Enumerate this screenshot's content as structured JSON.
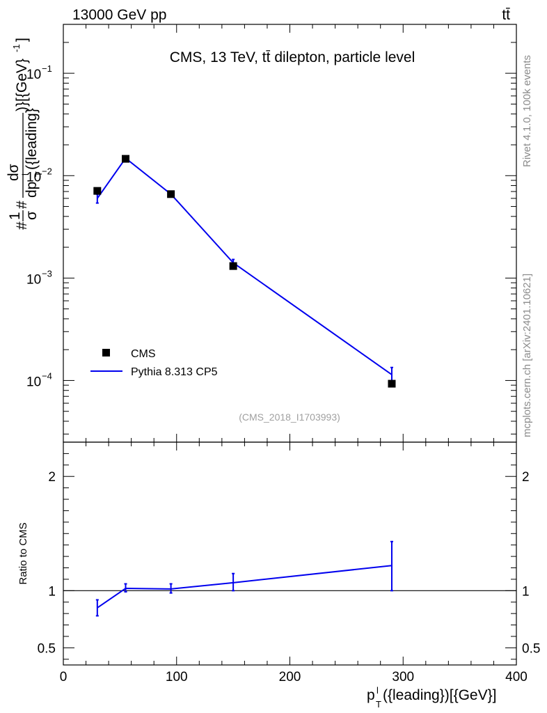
{
  "header": {
    "energy": "13000 GeV pp",
    "process": "tt̄"
  },
  "side_labels": {
    "rivet": "Rivet 4.1.0,  100k events",
    "mcplots": "mcplots.cern.ch [arXiv:2401.10621]"
  },
  "chart_data": [
    {
      "type": "scatter",
      "title": "CMS, 13 TeV, tt̄ dilepton, particle level",
      "watermark": "(CMS_2018_I1703993)",
      "xlabel": "p_T^l({leading})[{GeV}]",
      "ylabel_parts": {
        "prefix": "#",
        "one": "1",
        "sigma": "σ",
        "hash": "#",
        "numerator": "dσ",
        "denominator": "dp",
        "sup_l": "l",
        "sub_T": "T",
        "denominator_tail": "({leading}",
        "tail": ")}[{GeV}",
        "exp": "-1",
        "close": "]"
      },
      "yscale": "log",
      "xlim": [
        0,
        400
      ],
      "ylim": [
        2.5e-05,
        0.3
      ],
      "yticks": [
        {
          "value": 0.1,
          "base": "10",
          "exp": "−1"
        },
        {
          "value": 0.01,
          "base": "10",
          "exp": "−2"
        },
        {
          "value": 0.001,
          "base": "10",
          "exp": "−3"
        },
        {
          "value": 0.0001,
          "base": "10",
          "exp": "−4"
        }
      ],
      "legend": {
        "position": "bottom-left",
        "entries": [
          "CMS",
          "Pythia 8.313 CP5"
        ]
      },
      "series": [
        {
          "name": "CMS",
          "style": "markers",
          "color": "#000000",
          "x": [
            30,
            55,
            95,
            150,
            290
          ],
          "y": [
            0.0071,
            0.0146,
            0.0066,
            0.00131,
            9.3e-05
          ]
        },
        {
          "name": "Pythia 8.313 CP5",
          "style": "line",
          "color": "#0000ee",
          "x": [
            30,
            55,
            95,
            150,
            290
          ],
          "y": [
            0.006,
            0.0148,
            0.0066,
            0.00141,
            0.000114
          ],
          "err_low": [
            0.0054,
            0.0141,
            0.0063,
            0.0013,
            9.4e-05
          ],
          "err_high": [
            0.0066,
            0.0155,
            0.0069,
            0.00152,
            0.000134
          ]
        }
      ]
    },
    {
      "type": "line",
      "ylabel": "Ratio to CMS",
      "xlabel": "p_T^l({leading})[{GeV}]",
      "xlim": [
        0,
        400
      ],
      "ylim": [
        0.35,
        2.3
      ],
      "xticks": [
        0,
        100,
        200,
        300,
        400
      ],
      "yticks": [
        0.5,
        1,
        2
      ],
      "reference": 1,
      "series": [
        {
          "name": "Pythia 8.313 CP5 / CMS",
          "color": "#0000ee",
          "x": [
            30,
            55,
            95,
            150,
            290
          ],
          "y": [
            0.85,
            1.02,
            1.015,
            1.07,
            1.22
          ],
          "err_low": [
            0.78,
            0.99,
            0.98,
            1.0,
            1.0
          ],
          "err_high": [
            0.92,
            1.06,
            1.06,
            1.15,
            1.43
          ]
        }
      ]
    }
  ]
}
